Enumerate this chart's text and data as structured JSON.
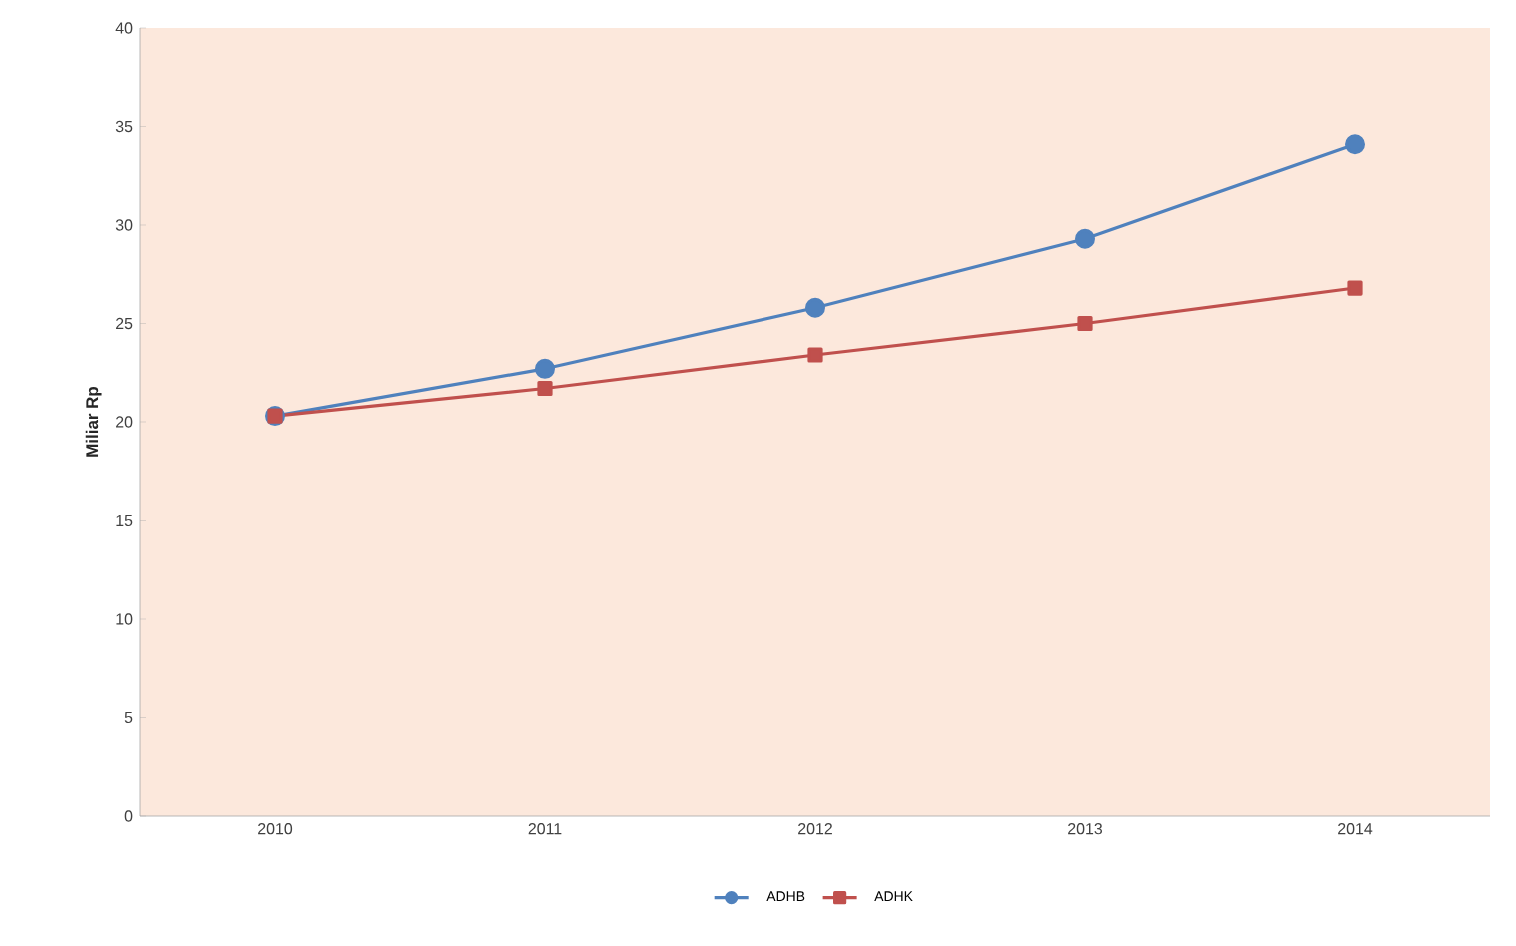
{
  "chart_data": {
    "type": "line",
    "ylabel": "Miliar Rp",
    "categories": [
      "2010",
      "2011",
      "2012",
      "2013",
      "2014"
    ],
    "series": [
      {
        "name": "ADHB",
        "color": "#4f81bd",
        "marker": "circle",
        "values": [
          20.3,
          22.7,
          25.8,
          29.3,
          34.1
        ]
      },
      {
        "name": "ADHK",
        "color": "#c0504d",
        "marker": "square",
        "values": [
          20.3,
          21.7,
          23.4,
          25.0,
          26.8
        ]
      }
    ],
    "ylim": [
      0,
      40
    ],
    "yticks": [
      0,
      5,
      10,
      15,
      20,
      25,
      30,
      35,
      40
    ],
    "legend": "bottom",
    "line_style": "solid",
    "grid": false
  }
}
